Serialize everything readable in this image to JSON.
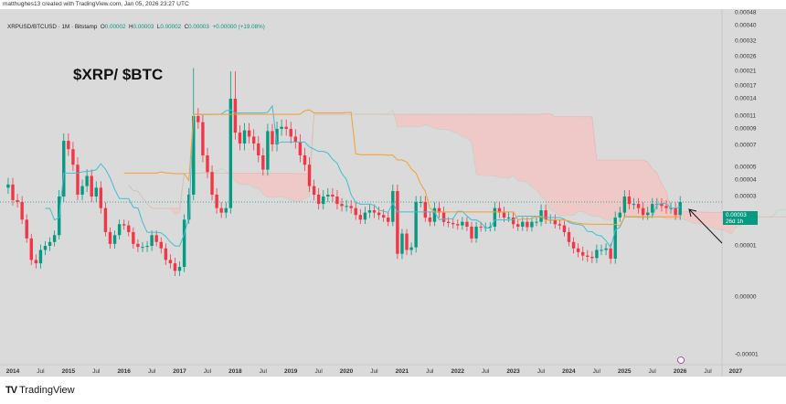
{
  "header": {
    "attribution": "matthughes13 created with TradingView.com, Jan 05, 2026 23:27 UTC"
  },
  "legend": {
    "symbol": "XRPUSD/BTCUSD · 1M · Bitstamp",
    "o_label": "O",
    "o": "0.00002",
    "h_label": "H",
    "h": "0.00003",
    "l_label": "L",
    "l": "0.00002",
    "c_label": "C",
    "c": "0.00003",
    "change": "+0.00000 (+19.08%)"
  },
  "annotation": {
    "title": "$XRP/ $BTC"
  },
  "price_axis": {
    "ticks": [
      "0.00048",
      "0.00040",
      "0.00032",
      "0.00026",
      "0.00021",
      "0.00017",
      "0.00014",
      "0.00011",
      "0.00009",
      "0.00007",
      "0.00005",
      "0.00004",
      "0.00003",
      "0.00001",
      "0.00000",
      "-0.00001"
    ],
    "current_price": "0.00003",
    "countdown": "26d 1h"
  },
  "time_axis": {
    "labels": [
      "2014",
      "Jul",
      "2015",
      "Jul",
      "2016",
      "Jul",
      "2017",
      "Jul",
      "2018",
      "Jul",
      "2019",
      "Jul",
      "2020",
      "Jul",
      "2021",
      "Jul",
      "2022",
      "Jul",
      "2023",
      "Jul",
      "2024",
      "Jul",
      "2025",
      "Jul",
      "2026",
      "Jul",
      "2027"
    ]
  },
  "footer": {
    "logo": "TradingView"
  },
  "colors": {
    "up": "#089981",
    "down": "#f23645",
    "conversion_line": "#3fbfd4",
    "base_line": "#f0a030",
    "cloud_bear": "#f2c4c4",
    "background": "#dadada"
  },
  "chart_data": {
    "type": "candlestick",
    "interval": "1M",
    "start": "2013-12",
    "y_scale": "log",
    "indicators": [
      "ichimoku cloud"
    ],
    "closes": [
      3.7e-05,
      2.8e-05,
      2.7e-05,
      1.9e-05,
      1.2e-05,
      7.5e-06,
      7e-06,
      9.2e-06,
      1e-05,
      1.1e-05,
      1.3e-05,
      3e-05,
      7.5e-05,
      6.6e-05,
      5.2e-05,
      3.1e-05,
      3.6e-05,
      4.3e-05,
      3e-05,
      3.5e-05,
      2.4e-05,
      1.4e-05,
      1.05e-05,
      1.3e-05,
      1.7e-05,
      1.65e-05,
      1.4e-05,
      1.05e-05,
      9.8e-06,
      9.8e-06,
      1e-05,
      1.3e-05,
      1.1e-05,
      9.5e-06,
      7.5e-06,
      7e-06,
      6e-06,
      6.5e-06,
      1.9e-05,
      3.1e-05,
      0.00011,
      0.0001,
      6e-05,
      4.6e-05,
      3.1e-05,
      2.4e-05,
      2.2e-05,
      2.4e-05,
      0.00014,
      8.5e-05,
      7.2e-05,
      8.8e-05,
      8e-05,
      7.2e-05,
      6e-05,
      4.8e-05,
      8.7e-05,
      7.1e-05,
      9e-05,
      9.3e-05,
      9e-05,
      8e-05,
      7.4e-05,
      6e-05,
      5.2e-05,
      3.6e-05,
      3.1e-05,
      2.6e-05,
      3e-05,
      3.1e-05,
      3e-05,
      2.6e-05,
      2.5e-05,
      2.5e-05,
      2.4e-05,
      2.1e-05,
      1.9e-05,
      2.2e-05,
      2.3e-05,
      2.2e-05,
      2.1e-05,
      2e-05,
      1.8e-05,
      3.3e-05,
      8.5e-06,
      1.35e-05,
      9.2e-06,
      9.7e-06,
      2.7e-05,
      2.7e-05,
      2e-05,
      1.8e-05,
      2.4e-05,
      2.2e-05,
      1.8e-05,
      1.75e-05,
      1.7e-05,
      1.65e-05,
      1.8e-05,
      1.6e-05,
      1.2e-05,
      1.6e-05,
      1.58e-05,
      1.58e-05,
      1.6e-05,
      2.4e-05,
      2.2e-05,
      2e-05,
      2e-05,
      1.7e-05,
      1.6e-05,
      1.8e-05,
      1.58e-05,
      1.8e-05,
      1.8e-05,
      2.3e-05,
      1.9e-05,
      1.9e-05,
      1.7e-05,
      1.65e-05,
      1.4e-05,
      1.1e-05,
      9.5e-06,
      8.8e-06,
      8.2e-06,
      8e-06,
      7.8e-06,
      9.2e-06,
      9.2e-06,
      9.5e-06,
      7.7e-06,
      2e-05,
      2.2e-05,
      3e-05,
      2.6e-05,
      2.6e-05,
      2.4e-05,
      2.1e-05,
      2.2e-05,
      2.6e-05,
      2.6e-05,
      2.5e-05,
      2.4e-05,
      2.4e-05,
      2.1e-05,
      2.7e-05
    ],
    "first_open": 3.5e-05,
    "notable_highs": {
      "2017-04": 0.00022,
      "2017-12": 0.00021,
      "2018-01": 0.00021
    },
    "current_price": 2.7e-05
  }
}
